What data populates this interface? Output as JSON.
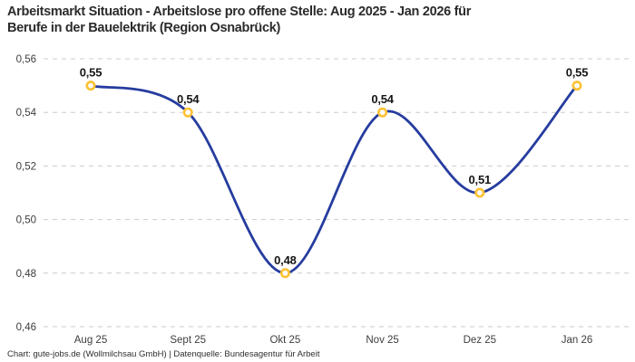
{
  "header": {
    "title_lines": [
      "Arbeitsmarkt Situation - Arbeitslose pro offene Stelle: Aug 2025 - Jan 2026 für",
      "Berufe in der Bauelektrik (Region Osnabrück)"
    ]
  },
  "footer": {
    "text": "Chart: gute-jobs.de (Wollmilchsau GmbH) | Datenquelle: Bundesagentur für Arbeit"
  },
  "chart_data": {
    "type": "line",
    "title": "Arbeitsmarkt Situation - Arbeitslose pro offene Stelle: Aug 2025 - Jan 2026 für Berufe in der Bauelektrik (Region Osnabrück)",
    "categories": [
      "Aug 25",
      "Sept 25",
      "Okt 25",
      "Nov 25",
      "Dez 25",
      "Jan 26"
    ],
    "series": [
      {
        "name": "Arbeitslose pro offene Stelle",
        "values": [
          0.55,
          0.54,
          0.48,
          0.54,
          0.51,
          0.55
        ],
        "point_labels": [
          "0,55",
          "0,54",
          "0,48",
          "0,54",
          "0,51",
          "0,55"
        ]
      }
    ],
    "xlabel": "",
    "ylabel": "",
    "ylim": [
      0.46,
      0.56
    ],
    "yticks": {
      "values": [
        0.56,
        0.54,
        0.52,
        0.5,
        0.48,
        0.46
      ],
      "labels": [
        "0,56",
        "0,54",
        "0,52",
        "0,50",
        "0,48",
        "0,46"
      ]
    },
    "grid": "horizontal-dashed",
    "legend_position": "none",
    "line_style": "smooth",
    "colors": {
      "line": "#263c9f",
      "marker_stroke": "#fdc133",
      "marker_fill": "#ffffff",
      "grid": "#cbcbcb",
      "title_text": "#2b2b2b",
      "tick_text": "#3d3d3d",
      "point_label_text": "#161616",
      "background": "#ffffff"
    }
  }
}
